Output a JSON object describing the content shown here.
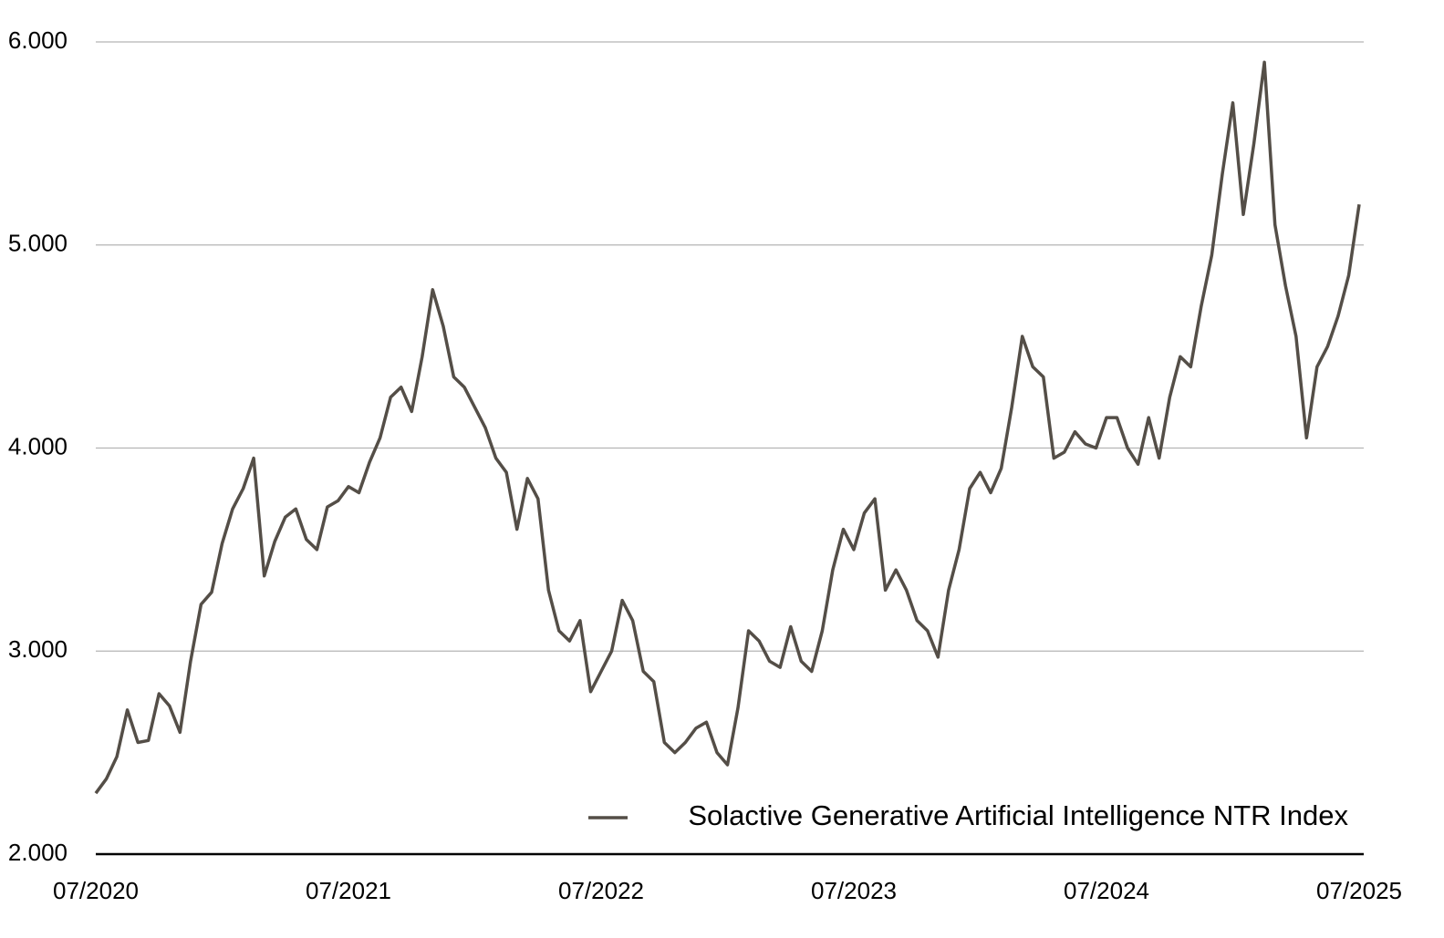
{
  "chart_data": {
    "type": "line",
    "categories": [
      "07/2020",
      null,
      null,
      null,
      null,
      null,
      null,
      null,
      null,
      null,
      null,
      null,
      null,
      null,
      null,
      null,
      null,
      null,
      null,
      null,
      null,
      null,
      null,
      null,
      "07/2021",
      null,
      null,
      null,
      null,
      null,
      null,
      null,
      null,
      null,
      null,
      null,
      null,
      null,
      null,
      null,
      null,
      null,
      null,
      null,
      null,
      null,
      null,
      null,
      "07/2022",
      null,
      null,
      null,
      null,
      null,
      null,
      null,
      null,
      null,
      null,
      null,
      null,
      null,
      null,
      null,
      null,
      null,
      null,
      null,
      null,
      null,
      null,
      null,
      "07/2023",
      null,
      null,
      null,
      null,
      null,
      null,
      null,
      null,
      null,
      null,
      null,
      null,
      null,
      null,
      null,
      null,
      null,
      null,
      null,
      null,
      null,
      null,
      null,
      "07/2024",
      null,
      null,
      null,
      null,
      null,
      null,
      null,
      null,
      null,
      null,
      null,
      null,
      null,
      null,
      null,
      null,
      null,
      null,
      null,
      null,
      null,
      null,
      null,
      "07/2025"
    ],
    "series": [
      {
        "name": "Solactive Generative Artificial Intelligence NTR Index",
        "color": "#544e47",
        "values": [
          2.3,
          2.37,
          2.48,
          2.71,
          2.55,
          2.56,
          2.79,
          2.73,
          2.6,
          2.95,
          3.23,
          3.29,
          3.53,
          3.7,
          3.8,
          3.95,
          3.37,
          3.54,
          3.66,
          3.7,
          3.55,
          3.5,
          3.71,
          3.74,
          3.81,
          3.78,
          3.93,
          4.05,
          4.25,
          4.3,
          4.18,
          4.45,
          4.78,
          4.6,
          4.35,
          4.3,
          4.2,
          4.1,
          3.95,
          3.88,
          3.6,
          3.85,
          3.75,
          3.3,
          3.1,
          3.05,
          3.15,
          2.8,
          2.9,
          3.0,
          3.25,
          3.15,
          2.9,
          2.85,
          2.55,
          2.5,
          2.55,
          2.62,
          2.65,
          2.5,
          2.44,
          2.72,
          3.1,
          3.05,
          2.95,
          2.92,
          3.12,
          2.95,
          2.9,
          3.1,
          3.4,
          3.6,
          3.5,
          3.68,
          3.75,
          3.3,
          3.4,
          3.3,
          3.15,
          3.1,
          2.97,
          3.3,
          3.5,
          3.8,
          3.88,
          3.78,
          3.9,
          4.2,
          4.55,
          4.4,
          4.35,
          3.95,
          3.98,
          4.08,
          4.02,
          4.0,
          4.15,
          4.15,
          4.0,
          3.92,
          4.15,
          3.95,
          4.25,
          4.45,
          4.4,
          4.7,
          4.95,
          5.35,
          5.7,
          5.15,
          5.5,
          5.9,
          5.1,
          4.8,
          4.55,
          4.05,
          4.4,
          4.5,
          4.65,
          4.85,
          5.2
        ]
      }
    ],
    "ylim": [
      2,
      6
    ],
    "yticks": [
      {
        "value": 2,
        "label": "2.000"
      },
      {
        "value": 3,
        "label": "3.000"
      },
      {
        "value": 4,
        "label": "4.000"
      },
      {
        "value": 5,
        "label": "5.000"
      },
      {
        "value": 6,
        "label": "6.000"
      }
    ],
    "grid": true,
    "legend": "lower right"
  }
}
